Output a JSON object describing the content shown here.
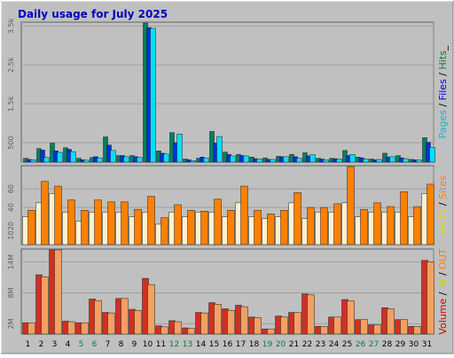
{
  "chart_data": {
    "title": "Daily usage for July 2025",
    "type": "bar",
    "days": [
      "1",
      "2",
      "3",
      "4",
      "5",
      "6",
      "7",
      "8",
      "9",
      "10",
      "11",
      "12",
      "13",
      "14",
      "15",
      "16",
      "17",
      "18",
      "19",
      "20",
      "21",
      "22",
      "23",
      "24",
      "25",
      "26",
      "27",
      "28",
      "29",
      "30",
      "31"
    ],
    "weekend_days": [
      "5",
      "6",
      "12",
      "13",
      "19",
      "20",
      "26",
      "27"
    ],
    "panels": [
      {
        "id": "pages-files-hits",
        "type": "bar",
        "ylim": [
          0,
          3600
        ],
        "yticks": [
          {
            "value": 500,
            "label": "500"
          },
          {
            "value": 1500,
            "label": "1.5k"
          },
          {
            "value": 2500,
            "label": "2.5k"
          },
          {
            "value": 3500,
            "label": "3.5k"
          }
        ],
        "axis_label_parts": [
          {
            "text": "Pages",
            "color": "#00C0D0"
          },
          {
            "text": " / ",
            "color": "#000000"
          },
          {
            "text": "Files",
            "color": "#0000FF"
          },
          {
            "text": " / ",
            "color": "#000000"
          },
          {
            "text": "Hits",
            "color": "#008040"
          },
          {
            "text": "_",
            "color": "#000000"
          }
        ],
        "series": [
          {
            "color": "#008060",
            "values": [
              100,
              350,
              490,
              370,
              100,
              120,
              650,
              170,
              170,
              3720,
              290,
              760,
              80,
              100,
              790,
              260,
              200,
              130,
              110,
              150,
              200,
              240,
              100,
              100,
              300,
              130,
              80,
              230,
              170,
              70,
              630
            ]
          },
          {
            "color": "#0030E0",
            "values": [
              70,
              310,
              290,
              330,
              60,
              140,
              440,
              170,
              140,
              3460,
              230,
              500,
              60,
              130,
              490,
              200,
              170,
              90,
              70,
              140,
              140,
              160,
              80,
              90,
              170,
              110,
              60,
              130,
              110,
              60,
              510
            ]
          },
          {
            "color": "#00E0FF",
            "values": [
              60,
              120,
              250,
              270,
              50,
              110,
              300,
              140,
              120,
              3440,
              210,
              720,
              40,
              110,
              660,
              160,
              160,
              80,
              70,
              140,
              100,
              190,
              60,
              80,
              200,
              80,
              70,
              140,
              90,
              60,
              380
            ]
          }
        ]
      },
      {
        "id": "visits-sites",
        "type": "bar",
        "ylim": [
          0,
          85
        ],
        "yticks": [
          {
            "value": 10,
            "label": "10"
          },
          {
            "value": 20,
            "label": "20"
          },
          {
            "value": 40,
            "label": "40"
          },
          {
            "value": 60,
            "label": "60"
          }
        ],
        "axis_label_parts": [
          {
            "text": "Visits",
            "color": "#E0E000"
          },
          {
            "text": " / ",
            "color": "#000000"
          },
          {
            "text": "Sites",
            "color": "#FF8000"
          }
        ],
        "series": [
          {
            "color": "#FFF0D0",
            "values": [
              30,
              45,
              55,
              35,
              25,
              35,
              35,
              35,
              30,
              35,
              22,
              35,
              30,
              35,
              35,
              30,
              45,
              30,
              28,
              30,
              45,
              28,
              35,
              35,
              45,
              30,
              35,
              35,
              35,
              30,
              55
            ]
          },
          {
            "color": "#FF8000",
            "values": [
              37,
              68,
              63,
              48,
              37,
              48,
              46,
              46,
              38,
              52,
              29,
              43,
              37,
              36,
              49,
              37,
              63,
              37,
              33,
              37,
              56,
              40,
              40,
              44,
              86,
              38,
              45,
              41,
              57,
              41,
              65
            ]
          }
        ]
      },
      {
        "id": "volume",
        "type": "bar",
        "ylim": [
          0,
          16500
        ],
        "yticks": [
          {
            "value": 2000,
            "label": "2M"
          },
          {
            "value": 8000,
            "label": "8M"
          },
          {
            "value": 14000,
            "label": "14M"
          }
        ],
        "axis_label_parts": [
          {
            "text": "Volume",
            "color": "#D00000"
          },
          {
            "text": " / ",
            "color": "#000000"
          },
          {
            "text": "IN",
            "color": "#D0D000"
          },
          {
            "text": " / ",
            "color": "#000000"
          },
          {
            "text": "OUT",
            "color": "#FF8000"
          }
        ],
        "series": [
          {
            "color": "#D03020",
            "values": [
              2200,
              11500,
              16800,
              2500,
              2200,
              6800,
              4200,
              6900,
              4800,
              10800,
              1600,
              2600,
              1200,
              4200,
              6100,
              4900,
              5600,
              3300,
              1000,
              3500,
              4200,
              7800,
              1500,
              3300,
              6700,
              2800,
              1800,
              5100,
              2800,
              1500,
              14300
            ]
          },
          {
            "color": "#F4A060",
            "values": [
              2200,
              11100,
              16800,
              2400,
              2200,
              6500,
              4100,
              6900,
              4600,
              9600,
              1400,
              2400,
              1100,
              4100,
              5800,
              4600,
              5300,
              3200,
              1000,
              3300,
              4200,
              7600,
              1500,
              3300,
              6400,
              2800,
              1800,
              4900,
              2800,
              1500,
              14000
            ]
          }
        ]
      }
    ]
  }
}
